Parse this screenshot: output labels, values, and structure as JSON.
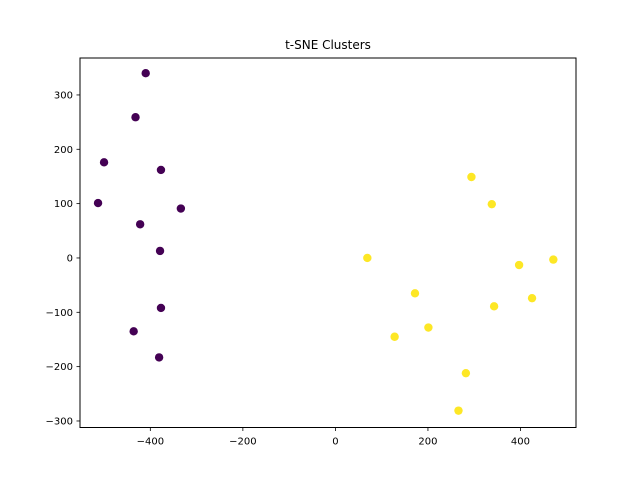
{
  "chart_data": {
    "type": "scatter",
    "title": "t-SNE Clusters",
    "xlabel": "",
    "ylabel": "",
    "xlim": [
      -552,
      520
    ],
    "ylim": [
      -312,
      368
    ],
    "xticks": [
      -400,
      -200,
      0,
      200,
      400
    ],
    "yticks": [
      -300,
      -200,
      -100,
      0,
      100,
      200,
      300
    ],
    "xtick_labels": [
      "−400",
      "−200",
      "0",
      "200",
      "400"
    ],
    "ytick_labels": [
      "−300",
      "−200",
      "−100",
      "0",
      "100",
      "200",
      "300"
    ],
    "grid": false,
    "series": [
      {
        "color": "#440154",
        "points": [
          {
            "x": -410,
            "y": 340
          },
          {
            "x": -432,
            "y": 259
          },
          {
            "x": -500,
            "y": 176
          },
          {
            "x": -377,
            "y": 162
          },
          {
            "x": -513,
            "y": 101
          },
          {
            "x": -334,
            "y": 91
          },
          {
            "x": -422,
            "y": 62
          },
          {
            "x": -379,
            "y": 13
          },
          {
            "x": -377,
            "y": -92
          },
          {
            "x": -436,
            "y": -135
          },
          {
            "x": -381,
            "y": -183
          }
        ]
      },
      {
        "color": "#fde725",
        "points": [
          {
            "x": 294,
            "y": 149
          },
          {
            "x": 338,
            "y": 99
          },
          {
            "x": 69,
            "y": 0
          },
          {
            "x": 471,
            "y": -3
          },
          {
            "x": 397,
            "y": -13
          },
          {
            "x": 172,
            "y": -65
          },
          {
            "x": 425,
            "y": -74
          },
          {
            "x": 343,
            "y": -89
          },
          {
            "x": 201,
            "y": -128
          },
          {
            "x": 128,
            "y": -145
          },
          {
            "x": 282,
            "y": -212
          },
          {
            "x": 266,
            "y": -281
          }
        ]
      }
    ]
  }
}
